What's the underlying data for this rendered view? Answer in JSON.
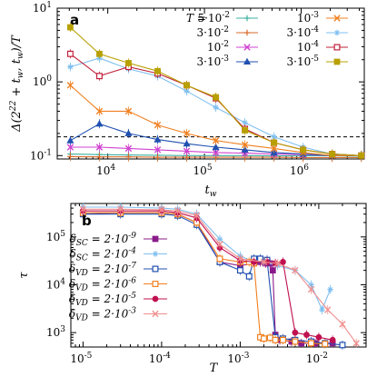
{
  "chart_data": [
    {
      "panel": "a",
      "type": "line",
      "xlabel": "t_w",
      "ylabel": "Δ(2^22 + t_w, t_w)/T",
      "xscale": "log",
      "yscale": "log",
      "xlim": [
        3000,
        4500000
      ],
      "ylim": [
        0.09,
        10
      ],
      "hline": 0.18,
      "legend_title": "T =",
      "legend_position": "top-right",
      "x_ticks": [
        "10^4",
        "10^5",
        "10^6"
      ],
      "y_ticks": [
        "10^-1",
        "10^0",
        "10^1"
      ],
      "x": [
        4096,
        8192,
        16384,
        32768,
        65536,
        131072,
        262144,
        524288,
        1048576,
        2097152,
        4194304
      ],
      "series": [
        {
          "name": "5·10^-2",
          "color": "#3cb0a0",
          "marker": "plus",
          "values": [
            0.105,
            0.103,
            0.102,
            0.101,
            0.1,
            0.1,
            0.1,
            0.099,
            0.099,
            0.099,
            0.098
          ]
        },
        {
          "name": "3·10^-2",
          "color": "#d86a2a",
          "marker": "plus",
          "values": [
            0.097,
            0.096,
            0.096,
            0.095,
            0.095,
            0.095,
            0.095,
            0.095,
            0.094,
            0.094,
            0.094
          ]
        },
        {
          "name": "10^-2",
          "color": "#d040d0",
          "marker": "x",
          "values": [
            0.13,
            0.13,
            0.125,
            0.12,
            0.115,
            0.11,
            0.108,
            0.105,
            0.103,
            0.1,
            0.1
          ]
        },
        {
          "name": "3·10^-3",
          "color": "#2050b0",
          "marker": "tri",
          "values": [
            0.16,
            0.27,
            0.2,
            0.165,
            0.145,
            0.13,
            0.12,
            0.11,
            0.105,
            0.1,
            0.1
          ]
        },
        {
          "name": "10^-3",
          "color": "#f08020",
          "marker": "x",
          "values": [
            0.9,
            0.4,
            0.4,
            0.26,
            0.2,
            0.16,
            0.14,
            0.125,
            0.11,
            0.1,
            0.1
          ]
        },
        {
          "name": "3·10^-4",
          "color": "#80c0f0",
          "marker": "star",
          "values": [
            1.6,
            2.1,
            1.5,
            1.2,
            0.75,
            0.45,
            0.28,
            0.18,
            0.13,
            0.105,
            0.1
          ]
        },
        {
          "name": "10^-4",
          "color": "#c0203a",
          "marker": "sqopen",
          "values": [
            2.4,
            1.2,
            1.6,
            1.3,
            0.9,
            0.6,
            0.23,
            0.15,
            0.12,
            0.105,
            0.1
          ]
        },
        {
          "name": "3·10^-5",
          "color": "#b8a000",
          "marker": "sqfill",
          "values": [
            5.5,
            2.4,
            1.8,
            1.4,
            0.9,
            0.62,
            0.22,
            0.15,
            0.12,
            0.105,
            0.1
          ]
        }
      ]
    },
    {
      "panel": "b",
      "type": "line",
      "xlabel": "T",
      "ylabel": "τ",
      "xscale": "log",
      "yscale": "log",
      "xlim": [
        7e-06,
        0.04
      ],
      "ylim": [
        500,
        500000
      ],
      "legend_position": "left",
      "x_ticks": [
        "10^-5",
        "10^-4",
        "10^-3",
        "10^-2"
      ],
      "y_ticks": [
        "10^3",
        "10^4",
        "10^5"
      ],
      "series": [
        {
          "name": "δ_SC = 2·10^-9",
          "color": "#8a1a8a",
          "marker": "sqfill",
          "x": [
            1e-05,
            3e-05,
            0.0001,
            0.00016,
            0.00028,
            0.00055,
            0.001,
            0.0018,
            0.0021,
            0.0024,
            0.0026,
            0.0028,
            0.0032,
            0.0045,
            0.006,
            0.009,
            0.015
          ],
          "values": [
            300000,
            320000,
            320000,
            300000,
            200000,
            30000,
            25000,
            30000,
            28000,
            28000,
            20000,
            900,
            700,
            650,
            600,
            600,
            600
          ]
        },
        {
          "name": "δ_SC = 2·10^-4",
          "color": "#80c0f0",
          "marker": "star",
          "x": [
            1e-05,
            3e-05,
            0.0001,
            0.00016,
            0.00028,
            0.00055,
            0.001,
            0.0015,
            0.002,
            0.003,
            0.005,
            0.008,
            0.011,
            0.014
          ],
          "values": [
            420000,
            420000,
            400000,
            380000,
            300000,
            90000,
            40000,
            30000,
            30000,
            25000,
            20000,
            10000,
            3000,
            8000
          ]
        },
        {
          "name": "δ_VD = 2·10^-7",
          "color": "#2050b0",
          "marker": "sqopen",
          "x": [
            1e-05,
            3e-05,
            0.0001,
            0.00016,
            0.00028,
            0.00055,
            0.001,
            0.0013,
            0.0015,
            0.0018,
            0.0022,
            0.0028,
            0.0035,
            0.005,
            0.008,
            0.012,
            0.02
          ],
          "values": [
            300000,
            300000,
            300000,
            280000,
            180000,
            30000,
            20000,
            15000,
            35000,
            35000,
            33000,
            800,
            750,
            700,
            650,
            600,
            550
          ]
        },
        {
          "name": "δ_VD = 2·10^-6",
          "color": "#f08020",
          "marker": "sqopen",
          "x": [
            1e-05,
            3e-05,
            0.0001,
            0.00016,
            0.00028,
            0.00055,
            0.001,
            0.0013,
            0.0015,
            0.0018,
            0.002,
            0.0024,
            0.0028,
            0.0035,
            0.005,
            0.008,
            0.012
          ],
          "values": [
            320000,
            320000,
            320000,
            300000,
            200000,
            35000,
            30000,
            30000,
            28000,
            800,
            750,
            780,
            700,
            700,
            650,
            600,
            580
          ]
        },
        {
          "name": "δ_VD = 2·10^-5",
          "color": "#c01050",
          "marker": "circle",
          "x": [
            1e-05,
            3e-05,
            0.0001,
            0.00016,
            0.00028,
            0.00055,
            0.001,
            0.0015,
            0.0022,
            0.0028,
            0.0035,
            0.005,
            0.007,
            0.01,
            0.015
          ],
          "values": [
            350000,
            350000,
            350000,
            320000,
            250000,
            60000,
            32000,
            30000,
            30000,
            28000,
            30000,
            1000,
            900,
            800,
            700
          ]
        },
        {
          "name": "δ_VD = 2·10^-3",
          "color": "#f09090",
          "marker": "x",
          "x": [
            1e-05,
            3e-05,
            0.0001,
            0.00016,
            0.00028,
            0.00055,
            0.001,
            0.002,
            0.003,
            0.005,
            0.008,
            0.013,
            0.02,
            0.03
          ],
          "values": [
            380000,
            380000,
            370000,
            350000,
            280000,
            70000,
            35000,
            30000,
            28000,
            20000,
            8000,
            3000,
            1500,
            600
          ]
        }
      ]
    }
  ]
}
